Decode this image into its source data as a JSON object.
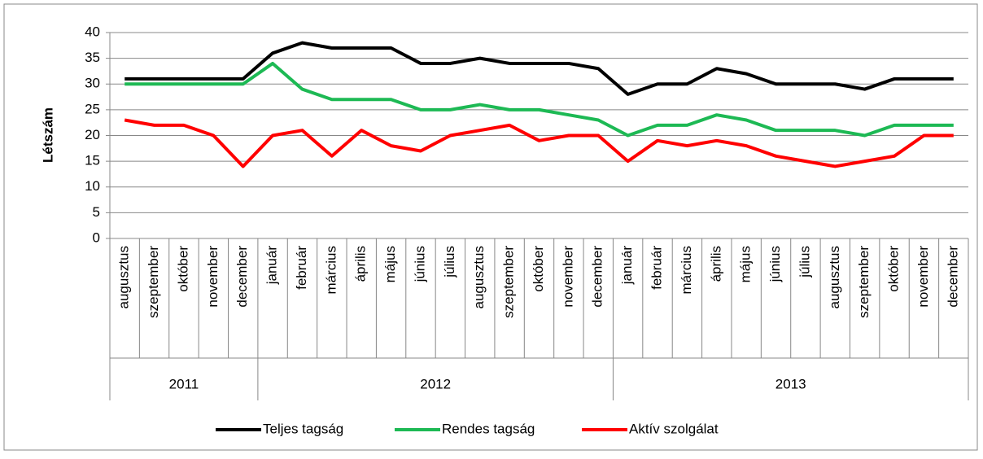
{
  "chart_data": {
    "type": "line",
    "y_label": "Létszám",
    "categories": [
      "augusztus",
      "szeptember",
      "október",
      "november",
      "december",
      "január",
      "február",
      "március",
      "április",
      "május",
      "június",
      "július",
      "augusztus",
      "szeptember",
      "október",
      "november",
      "december",
      "január",
      "február",
      "március",
      "április",
      "május",
      "június",
      "július",
      "augusztus",
      "szeptember",
      "október",
      "november",
      "december"
    ],
    "year_groups": [
      {
        "label": "2011",
        "size": 5
      },
      {
        "label": "2012",
        "size": 12
      },
      {
        "label": "2013",
        "size": 12
      }
    ],
    "series": [
      {
        "name": "Teljes tagság",
        "color": "#000000",
        "values": [
          31,
          31,
          31,
          31,
          31,
          36,
          38,
          37,
          37,
          37,
          34,
          34,
          35,
          34,
          34,
          34,
          33,
          28,
          30,
          30,
          33,
          32,
          30,
          30,
          30,
          29,
          31,
          31,
          31
        ]
      },
      {
        "name": "Rendes tagság",
        "color": "#1db954",
        "values": [
          30,
          30,
          30,
          30,
          30,
          34,
          29,
          27,
          27,
          27,
          25,
          25,
          26,
          25,
          25,
          24,
          23,
          20,
          22,
          22,
          24,
          23,
          21,
          21,
          21,
          20,
          22,
          22,
          22
        ]
      },
      {
        "name": "Aktív szolgálat",
        "color": "#ff0000",
        "values": [
          23,
          22,
          22,
          20,
          14,
          20,
          21,
          16,
          21,
          18,
          17,
          20,
          21,
          22,
          19,
          20,
          20,
          15,
          19,
          18,
          19,
          18,
          16,
          15,
          14,
          15,
          16,
          20,
          20
        ]
      }
    ],
    "ylim": [
      0,
      40
    ],
    "yticks": [
      0,
      5,
      10,
      15,
      20,
      25,
      30,
      35,
      40
    ],
    "grid": true,
    "legend": "bottom"
  }
}
